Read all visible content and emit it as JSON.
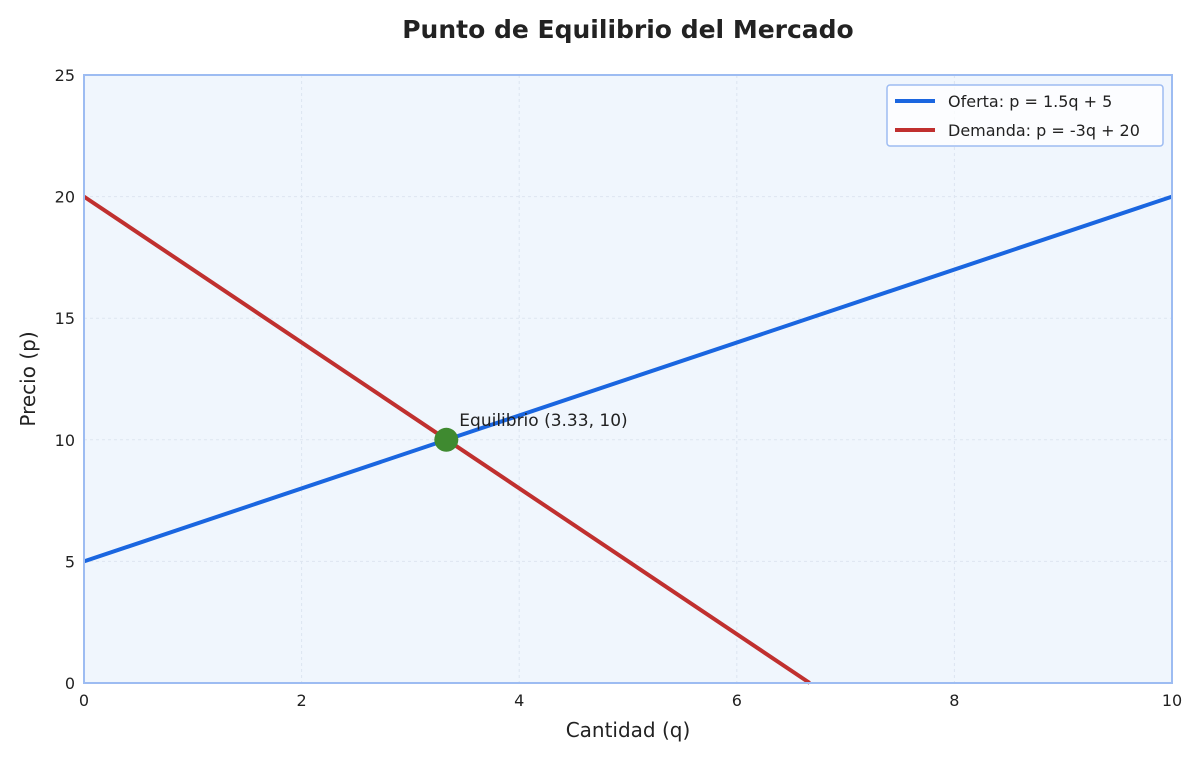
{
  "chart_data": {
    "type": "line",
    "title": "Punto de Equilibrio del Mercado",
    "xlabel": "Cantidad (q)",
    "ylabel": "Precio (p)",
    "xlim": [
      0,
      10
    ],
    "ylim": [
      0,
      25
    ],
    "x_ticks": [
      "0",
      "2",
      "4",
      "6",
      "8",
      "10"
    ],
    "y_ticks": [
      "0",
      "5",
      "10",
      "15",
      "20",
      "25"
    ],
    "grid": true,
    "legend_position": "top-right",
    "series": [
      {
        "name": "Oferta: p = 1.5q + 5",
        "color": "#1a66e0",
        "x": [
          0,
          10
        ],
        "y": [
          5,
          20
        ]
      },
      {
        "name": "Demanda: p = -3q + 20",
        "color": "#c0302f",
        "x": [
          0,
          6.67
        ],
        "y": [
          20,
          0
        ]
      }
    ],
    "points": [
      {
        "label": "Equilibrio (3.33, 10)",
        "x": 3.33,
        "y": 10,
        "color": "#3f8a30"
      }
    ],
    "colors": {
      "plot_background": "#f0f6fd",
      "plot_border": "#9dbcf2",
      "grid": "#dde5f0"
    }
  }
}
